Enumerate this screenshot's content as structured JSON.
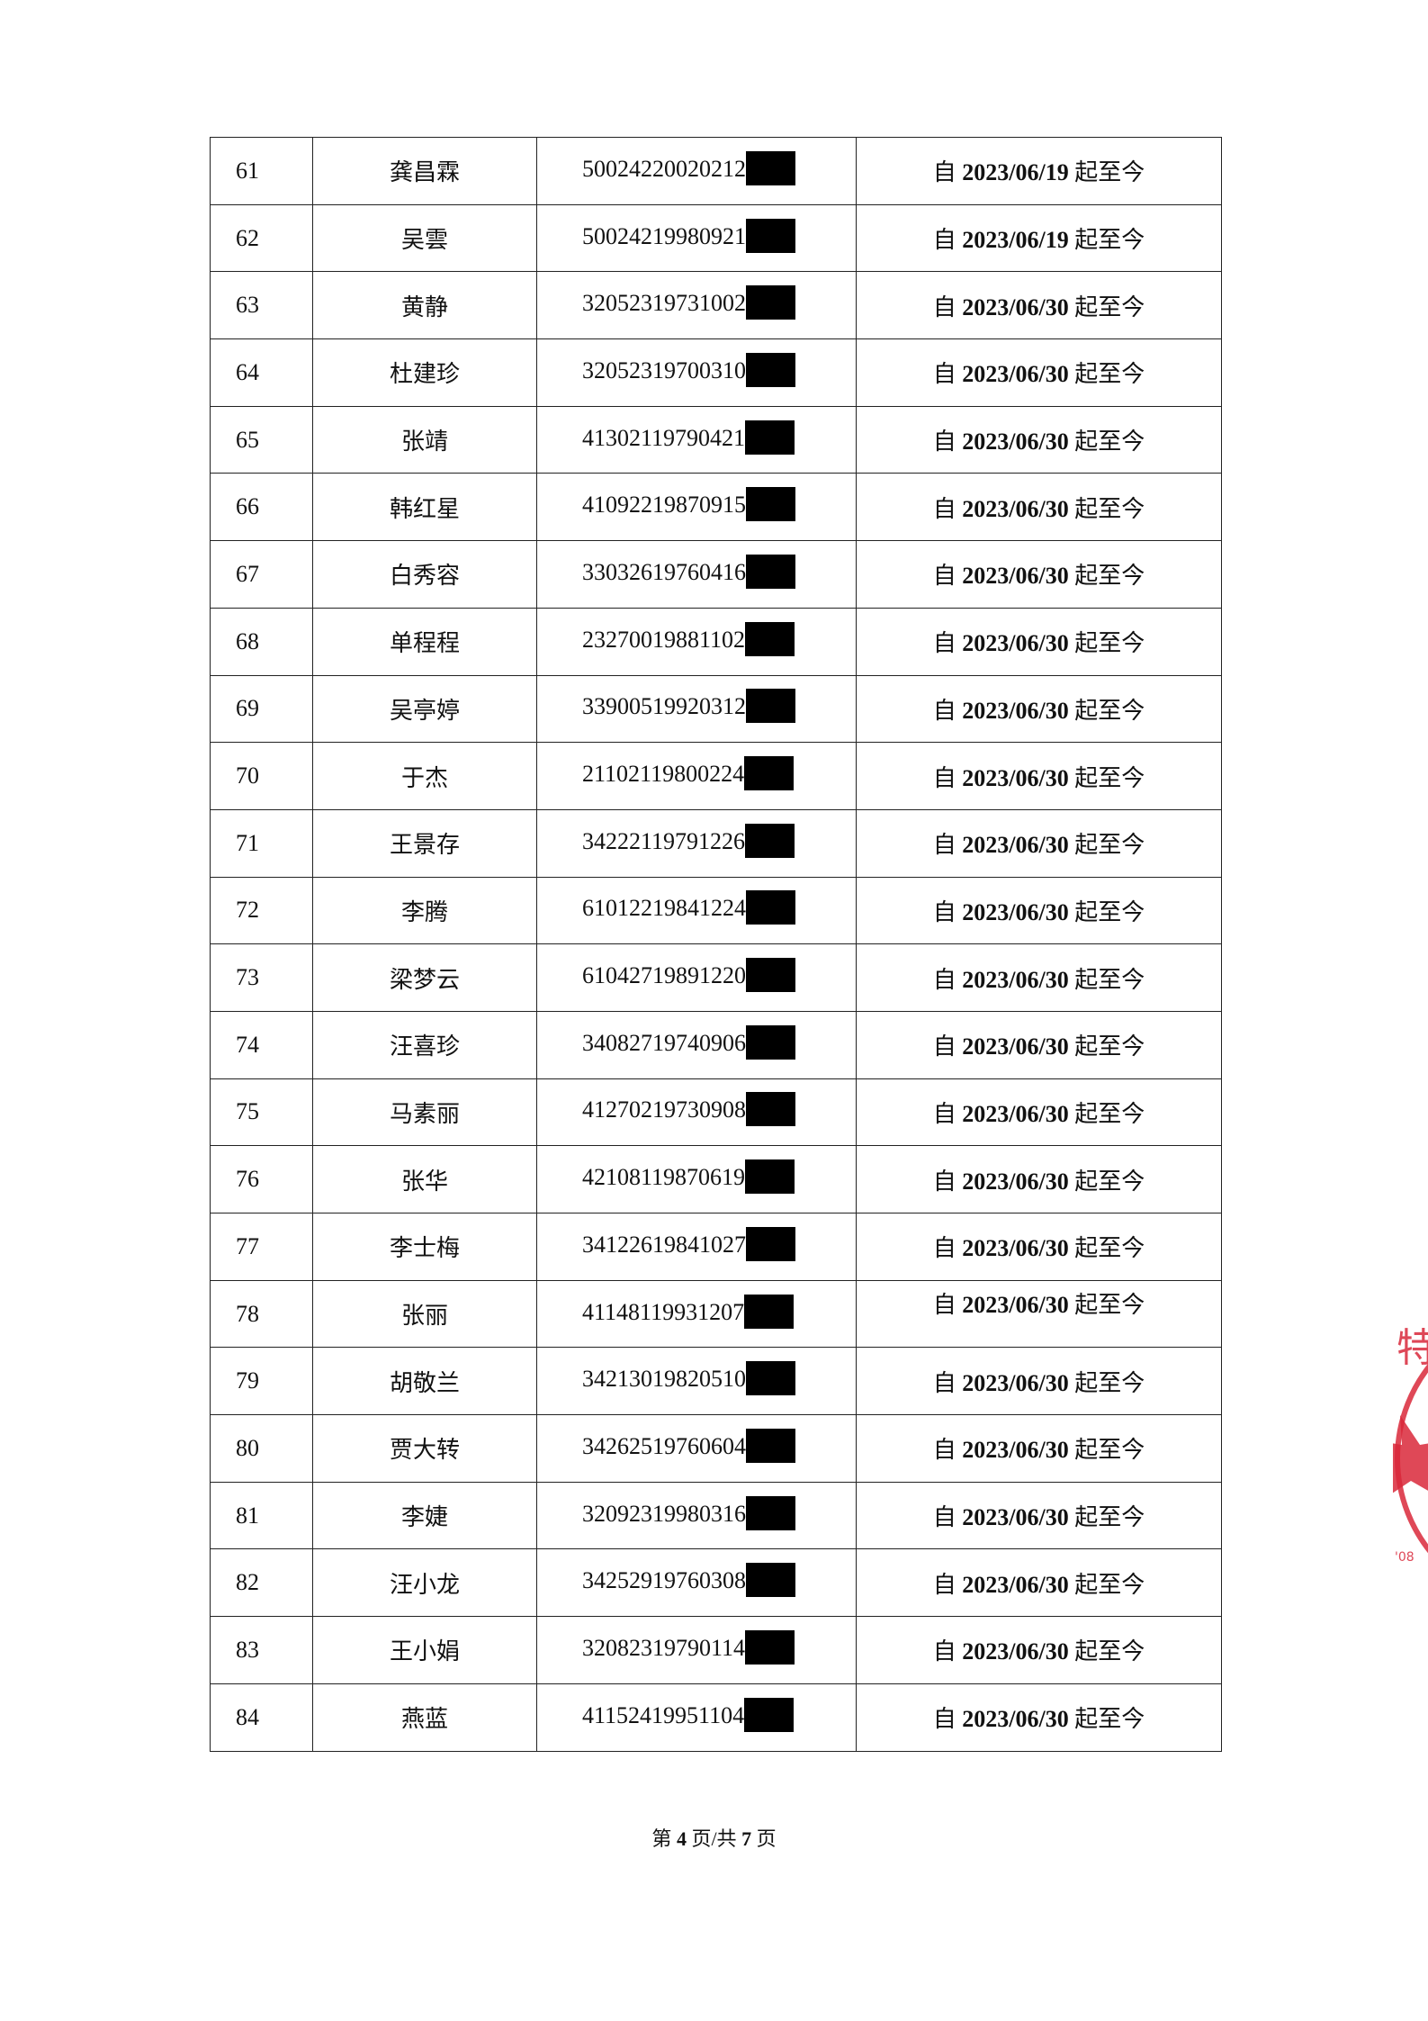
{
  "table": {
    "rows": [
      {
        "no": "61",
        "name": "龚昌霖",
        "id": "50024220020212",
        "date_prefix": "自",
        "date": "2023/06/19",
        "date_suffix": "起至今"
      },
      {
        "no": "62",
        "name": "吴雲",
        "id": "50024219980921",
        "date_prefix": "自",
        "date": "2023/06/19",
        "date_suffix": "起至今"
      },
      {
        "no": "63",
        "name": "黄静",
        "id": "32052319731002",
        "date_prefix": "自",
        "date": "2023/06/30",
        "date_suffix": "起至今"
      },
      {
        "no": "64",
        "name": "杜建珍",
        "id": "32052319700310",
        "date_prefix": "自",
        "date": "2023/06/30",
        "date_suffix": "起至今"
      },
      {
        "no": "65",
        "name": "张靖",
        "id": "41302119790421",
        "date_prefix": "自",
        "date": "2023/06/30",
        "date_suffix": "起至今"
      },
      {
        "no": "66",
        "name": "韩红星",
        "id": "41092219870915",
        "date_prefix": "自",
        "date": "2023/06/30",
        "date_suffix": "起至今"
      },
      {
        "no": "67",
        "name": "白秀容",
        "id": "33032619760416",
        "date_prefix": "自",
        "date": "2023/06/30",
        "date_suffix": "起至今"
      },
      {
        "no": "68",
        "name": "单程程",
        "id": "23270019881102",
        "date_prefix": "自",
        "date": "2023/06/30",
        "date_suffix": "起至今"
      },
      {
        "no": "69",
        "name": "吴亭婷",
        "id": "33900519920312",
        "date_prefix": "自",
        "date": "2023/06/30",
        "date_suffix": "起至今"
      },
      {
        "no": "70",
        "name": "于杰",
        "id": "21102119800224",
        "date_prefix": "自",
        "date": "2023/06/30",
        "date_suffix": "起至今"
      },
      {
        "no": "71",
        "name": "王景存",
        "id": "34222119791226",
        "date_prefix": "自",
        "date": "2023/06/30",
        "date_suffix": "起至今"
      },
      {
        "no": "72",
        "name": "李腾",
        "id": "61012219841224",
        "date_prefix": "自",
        "date": "2023/06/30",
        "date_suffix": "起至今"
      },
      {
        "no": "73",
        "name": "梁梦云",
        "id": "61042719891220",
        "date_prefix": "自",
        "date": "2023/06/30",
        "date_suffix": "起至今"
      },
      {
        "no": "74",
        "name": "汪喜珍",
        "id": "34082719740906",
        "date_prefix": "自",
        "date": "2023/06/30",
        "date_suffix": "起至今"
      },
      {
        "no": "75",
        "name": "马素丽",
        "id": "41270219730908",
        "date_prefix": "自",
        "date": "2023/06/30",
        "date_suffix": "起至今"
      },
      {
        "no": "76",
        "name": "张华",
        "id": "42108119870619",
        "date_prefix": "自",
        "date": "2023/06/30",
        "date_suffix": "起至今"
      },
      {
        "no": "77",
        "name": "李士梅",
        "id": "34122619841027",
        "date_prefix": "自",
        "date": "2023/06/30",
        "date_suffix": "起至今"
      },
      {
        "no": "78",
        "name": "张丽",
        "id": "41148119931207",
        "date_prefix": "自",
        "date": "2023/06/30",
        "date_suffix": "起至今"
      },
      {
        "no": "79",
        "name": "胡敬兰",
        "id": "34213019820510",
        "date_prefix": "自",
        "date": "2023/06/30",
        "date_suffix": "起至今"
      },
      {
        "no": "80",
        "name": "贾大转",
        "id": "34262519760604",
        "date_prefix": "自",
        "date": "2023/06/30",
        "date_suffix": "起至今"
      },
      {
        "no": "81",
        "name": "李婕",
        "id": "32092319980316",
        "date_prefix": "自",
        "date": "2023/06/30",
        "date_suffix": "起至今"
      },
      {
        "no": "82",
        "name": "汪小龙",
        "id": "34252919760308",
        "date_prefix": "自",
        "date": "2023/06/30",
        "date_suffix": "起至今"
      },
      {
        "no": "83",
        "name": "王小娟",
        "id": "32082319790114",
        "date_prefix": "自",
        "date": "2023/06/30",
        "date_suffix": "起至今"
      },
      {
        "no": "84",
        "name": "燕蓝",
        "id": "41152419951104",
        "date_prefix": "自",
        "date": "2023/06/30",
        "date_suffix": "起至今"
      }
    ]
  },
  "footer": {
    "pre": "第",
    "page": "4",
    "mid": "页/共",
    "total": "7",
    "post": "页"
  },
  "stamp": {
    "visible_text": "特",
    "code_fragment": "08",
    "color": "#d9283a"
  }
}
